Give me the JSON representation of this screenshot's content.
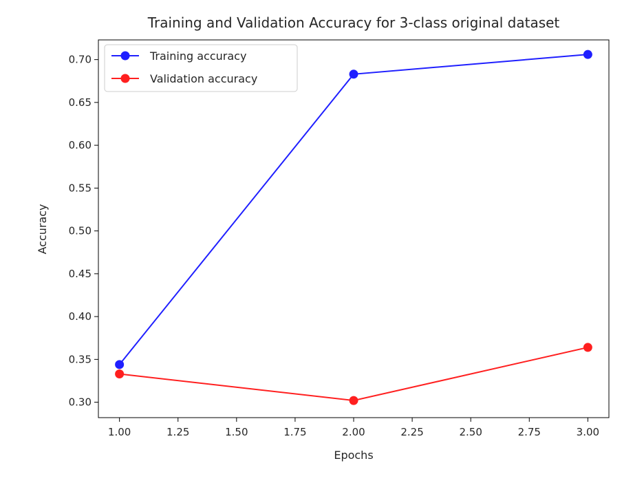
{
  "chart_data": {
    "type": "line",
    "title": "Training and Validation Accuracy for 3-class original dataset",
    "xlabel": "Epochs",
    "ylabel": "Accuracy",
    "x": [
      1.0,
      2.0,
      3.0
    ],
    "xlim": [
      0.91,
      3.09
    ],
    "ylim": [
      0.282,
      0.723
    ],
    "xticks": [
      "1.00",
      "1.25",
      "1.50",
      "1.75",
      "2.00",
      "2.25",
      "2.50",
      "2.75",
      "3.00"
    ],
    "yticks": [
      "0.30",
      "0.35",
      "0.40",
      "0.45",
      "0.50",
      "0.55",
      "0.60",
      "0.65",
      "0.70"
    ],
    "grid": false,
    "legend_position": "top-left",
    "series": [
      {
        "name": "Training accuracy",
        "color": "#1f1fff",
        "marker": "circle",
        "values": [
          0.344,
          0.683,
          0.706
        ]
      },
      {
        "name": "Validation accuracy",
        "color": "#ff1f1f",
        "marker": "circle",
        "values": [
          0.333,
          0.302,
          0.364
        ]
      }
    ]
  }
}
